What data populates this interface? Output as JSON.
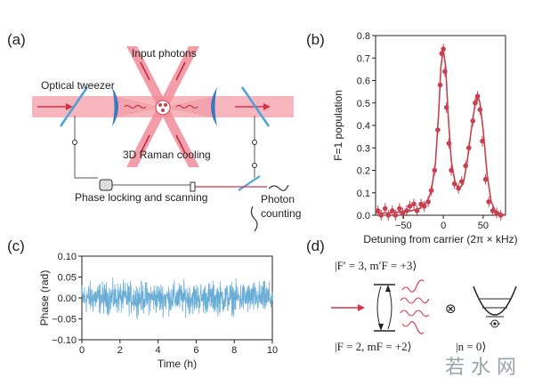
{
  "panels": {
    "a": "(a)",
    "b": "(b)",
    "c": "(c)",
    "d": "(d)"
  },
  "panel_a": {
    "optical_tweezer": "Optical tweezer",
    "input_photons": "Input photons",
    "raman_cooling": "3D Raman cooling",
    "phase_locking": "Phase locking and scanning",
    "photon_counting_1": "Photon",
    "photon_counting_2": "counting",
    "colors": {
      "beam": "#f7b6bd",
      "arrow": "#d6334a",
      "mirror": "#4aa3d8",
      "lens": "#3b78c4"
    }
  },
  "panel_d": {
    "excited_state": "|F′ = 3, m′F = +3⟩",
    "ground_state": "|F = 2, mF = +2⟩",
    "motional_state": "|n = 0⟩",
    "tensor": "⊗"
  },
  "watermark": "若 水 网",
  "chart_data": [
    {
      "type": "scatter",
      "panel": "b",
      "title": "",
      "xlabel": "Detuning from carrier (2π × kHz)",
      "ylabel": "F=1 population",
      "xlim": [
        -85,
        78
      ],
      "ylim": [
        0,
        0.8
      ],
      "xticks": [
        -50,
        0,
        50
      ],
      "yticks": [
        0.0,
        0.1,
        0.2,
        0.3,
        0.4,
        0.5,
        0.6,
        0.7,
        0.8
      ],
      "color": "#c8414f",
      "series": [
        {
          "name": "data",
          "x": [
            -82,
            -78,
            -73,
            -69,
            -64,
            -60,
            -55,
            -51,
            -46,
            -42,
            -37,
            -33,
            -28,
            -24,
            -19,
            -15,
            -11,
            -7,
            -4,
            -2,
            0,
            2,
            4,
            7,
            10,
            14,
            19,
            23,
            28,
            32,
            37,
            40,
            43,
            46,
            49,
            53,
            57,
            62,
            67,
            72
          ],
          "y": [
            0.02,
            0.0,
            0.03,
            0.0,
            0.02,
            0.0,
            0.03,
            0.01,
            0.02,
            0.04,
            0.05,
            0.02,
            0.05,
            0.04,
            0.06,
            0.11,
            0.2,
            0.38,
            0.58,
            0.72,
            0.74,
            0.64,
            0.48,
            0.32,
            0.2,
            0.14,
            0.12,
            0.15,
            0.22,
            0.3,
            0.42,
            0.5,
            0.53,
            0.47,
            0.33,
            0.16,
            0.06,
            0.02,
            0.01,
            0.0
          ]
        },
        {
          "name": "fit",
          "x": [
            -85,
            -70,
            -55,
            -40,
            -30,
            -20,
            -15,
            -10,
            -6,
            -3,
            0,
            3,
            6,
            10,
            15,
            20,
            25,
            30,
            35,
            40,
            43,
            46,
            50,
            55,
            60,
            65,
            70,
            78
          ],
          "y": [
            0.01,
            0.01,
            0.015,
            0.02,
            0.03,
            0.06,
            0.11,
            0.23,
            0.45,
            0.66,
            0.74,
            0.66,
            0.45,
            0.24,
            0.14,
            0.12,
            0.14,
            0.24,
            0.38,
            0.5,
            0.53,
            0.5,
            0.38,
            0.18,
            0.06,
            0.02,
            0.01,
            0.0
          ]
        }
      ]
    },
    {
      "type": "line",
      "panel": "c",
      "title": "",
      "xlabel": "Time (h)",
      "ylabel": "Phase (rad)",
      "xlim": [
        0,
        10
      ],
      "ylim": [
        -0.1,
        0.1
      ],
      "xticks": [
        0,
        2,
        4,
        6,
        8,
        10
      ],
      "yticks": [
        -0.1,
        -0.05,
        0.0,
        0.05,
        0.1
      ],
      "ytick_labels": [
        "−0.10",
        "−0.05",
        "0.00",
        "0.05",
        "0.10"
      ],
      "color": "#6aaed6",
      "series": [
        {
          "name": "phase",
          "samples": 900,
          "amplitude": 0.055,
          "x_range": [
            0,
            10
          ]
        }
      ]
    }
  ]
}
